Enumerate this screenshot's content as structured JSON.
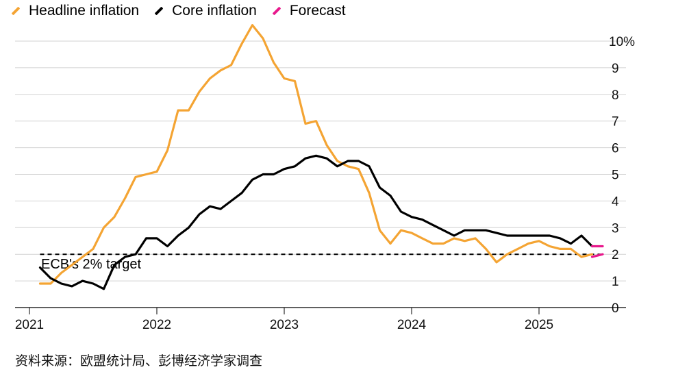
{
  "chart_data": {
    "type": "line",
    "legend": [
      {
        "name": "Headline inflation",
        "color": "#f4a433"
      },
      {
        "name": "Core inflation",
        "color": "#000000"
      },
      {
        "name": "Forecast",
        "color": "#e8188c"
      }
    ],
    "y_axis": {
      "ylim": [
        0,
        10
      ],
      "ticks": [
        0,
        1,
        2,
        3,
        4,
        5,
        6,
        7,
        8,
        9,
        10
      ],
      "tick_labels": [
        "0",
        "1",
        "2",
        "3",
        "4",
        "5",
        "6",
        "7",
        "8",
        "9",
        "10%"
      ],
      "position": "right",
      "grid": true
    },
    "x_axis": {
      "xlim": [
        "2021-01",
        "2025-08"
      ],
      "tick_labels": [
        "2021",
        "2022",
        "2023",
        "2024",
        "2025"
      ]
    },
    "target": {
      "value": 2,
      "label": "ECB's 2% target",
      "style": "dashed"
    },
    "series": [
      {
        "name": "Headline inflation",
        "color": "#f4a433",
        "x": [
          "2021-02",
          "2021-03",
          "2021-04",
          "2021-05",
          "2021-06",
          "2021-07",
          "2021-08",
          "2021-09",
          "2021-10",
          "2021-11",
          "2021-12",
          "2022-01",
          "2022-02",
          "2022-03",
          "2022-04",
          "2022-05",
          "2022-06",
          "2022-07",
          "2022-08",
          "2022-09",
          "2022-10",
          "2022-11",
          "2022-12",
          "2023-01",
          "2023-02",
          "2023-03",
          "2023-04",
          "2023-05",
          "2023-06",
          "2023-07",
          "2023-08",
          "2023-09",
          "2023-10",
          "2023-11",
          "2023-12",
          "2024-01",
          "2024-02",
          "2024-03",
          "2024-04",
          "2024-05",
          "2024-06",
          "2024-07",
          "2024-08",
          "2024-09",
          "2024-10",
          "2024-11",
          "2024-12",
          "2025-01",
          "2025-02",
          "2025-03",
          "2025-04",
          "2025-05",
          "2025-06"
        ],
        "values": [
          0.9,
          0.9,
          1.3,
          1.6,
          1.9,
          2.2,
          3.0,
          3.4,
          4.1,
          4.9,
          5.0,
          5.1,
          5.9,
          7.4,
          7.4,
          8.1,
          8.6,
          8.9,
          9.1,
          9.9,
          10.6,
          10.1,
          9.2,
          8.6,
          8.5,
          6.9,
          7.0,
          6.1,
          5.5,
          5.3,
          5.2,
          4.3,
          2.9,
          2.4,
          2.9,
          2.8,
          2.6,
          2.4,
          2.4,
          2.6,
          2.5,
          2.6,
          2.2,
          1.7,
          2.0,
          2.2,
          2.4,
          2.5,
          2.3,
          2.2,
          2.2,
          1.9,
          2.0
        ]
      },
      {
        "name": "Core inflation",
        "color": "#000000",
        "x": [
          "2021-02",
          "2021-03",
          "2021-04",
          "2021-05",
          "2021-06",
          "2021-07",
          "2021-08",
          "2021-09",
          "2021-10",
          "2021-11",
          "2021-12",
          "2022-01",
          "2022-02",
          "2022-03",
          "2022-04",
          "2022-05",
          "2022-06",
          "2022-07",
          "2022-08",
          "2022-09",
          "2022-10",
          "2022-11",
          "2022-12",
          "2023-01",
          "2023-02",
          "2023-03",
          "2023-04",
          "2023-05",
          "2023-06",
          "2023-07",
          "2023-08",
          "2023-09",
          "2023-10",
          "2023-11",
          "2023-12",
          "2024-01",
          "2024-02",
          "2024-03",
          "2024-04",
          "2024-05",
          "2024-06",
          "2024-07",
          "2024-08",
          "2024-09",
          "2024-10",
          "2024-11",
          "2024-12",
          "2025-01",
          "2025-02",
          "2025-03",
          "2025-04",
          "2025-05",
          "2025-06"
        ],
        "values": [
          1.5,
          1.1,
          0.9,
          0.8,
          1.0,
          0.9,
          0.7,
          1.6,
          1.9,
          2.0,
          2.6,
          2.6,
          2.3,
          2.7,
          3.0,
          3.5,
          3.8,
          3.7,
          4.0,
          4.3,
          4.8,
          5.0,
          5.0,
          5.2,
          5.3,
          5.6,
          5.7,
          5.6,
          5.3,
          5.5,
          5.5,
          5.3,
          4.5,
          4.2,
          3.6,
          3.4,
          3.3,
          3.1,
          2.9,
          2.7,
          2.9,
          2.9,
          2.9,
          2.8,
          2.7,
          2.7,
          2.7,
          2.7,
          2.7,
          2.6,
          2.4,
          2.7,
          2.3
        ]
      },
      {
        "name": "Forecast",
        "color": "#e8188c",
        "x": [
          "2025-06",
          "2025-07"
        ],
        "values": [
          2.3,
          2.3
        ]
      },
      {
        "name": "Forecast headline",
        "color": "#e8188c",
        "x": [
          "2025-06",
          "2025-07"
        ],
        "values": [
          1.9,
          2.0
        ]
      }
    ]
  },
  "source": "资料来源：欧盟统计局、彭博经济学家调查"
}
